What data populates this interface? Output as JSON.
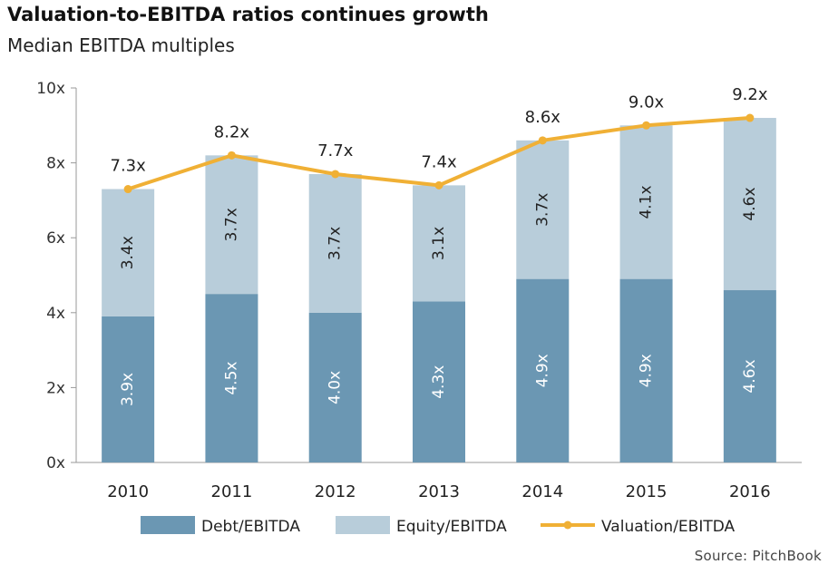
{
  "header": {
    "title": "Valuation-to-EBITDA ratios continues growth",
    "subtitle": "Median EBITDA multiples"
  },
  "footer": {
    "source": "Source: PitchBook"
  },
  "colors": {
    "debt": "#6b97b3",
    "equity": "#b8cdda",
    "valuation": "#f0b035",
    "axis": "#999999"
  },
  "chart_data": {
    "type": "bar",
    "stacked": true,
    "categories": [
      "2010",
      "2011",
      "2012",
      "2013",
      "2014",
      "2015",
      "2016"
    ],
    "series": [
      {
        "name": "Debt/EBITDA",
        "type": "bar",
        "values": [
          3.9,
          4.5,
          4.0,
          4.3,
          4.9,
          4.9,
          4.6
        ],
        "labels": [
          "3.9x",
          "4.5x",
          "4.0x",
          "4.3x",
          "4.9x",
          "4.9x",
          "4.6x"
        ]
      },
      {
        "name": "Equity/EBITDA",
        "type": "bar",
        "values": [
          3.4,
          3.7,
          3.7,
          3.1,
          3.7,
          4.1,
          4.6
        ],
        "labels": [
          "3.4x",
          "3.7x",
          "3.7x",
          "3.1x",
          "3.7x",
          "4.1x",
          "4.6x"
        ]
      },
      {
        "name": "Valuation/EBITDA",
        "type": "line",
        "values": [
          7.3,
          8.2,
          7.7,
          7.4,
          8.6,
          9.0,
          9.2
        ],
        "labels": [
          "7.3x",
          "8.2x",
          "7.7x",
          "7.4x",
          "8.6x",
          "9.0x",
          "9.2x"
        ]
      }
    ],
    "ylim": [
      0,
      10
    ],
    "yticks": [
      0,
      2,
      4,
      6,
      8,
      10
    ],
    "ytick_labels": [
      "0x",
      "2x",
      "4x",
      "6x",
      "8x",
      "10x"
    ],
    "grid": false,
    "legend_position": "bottom"
  }
}
